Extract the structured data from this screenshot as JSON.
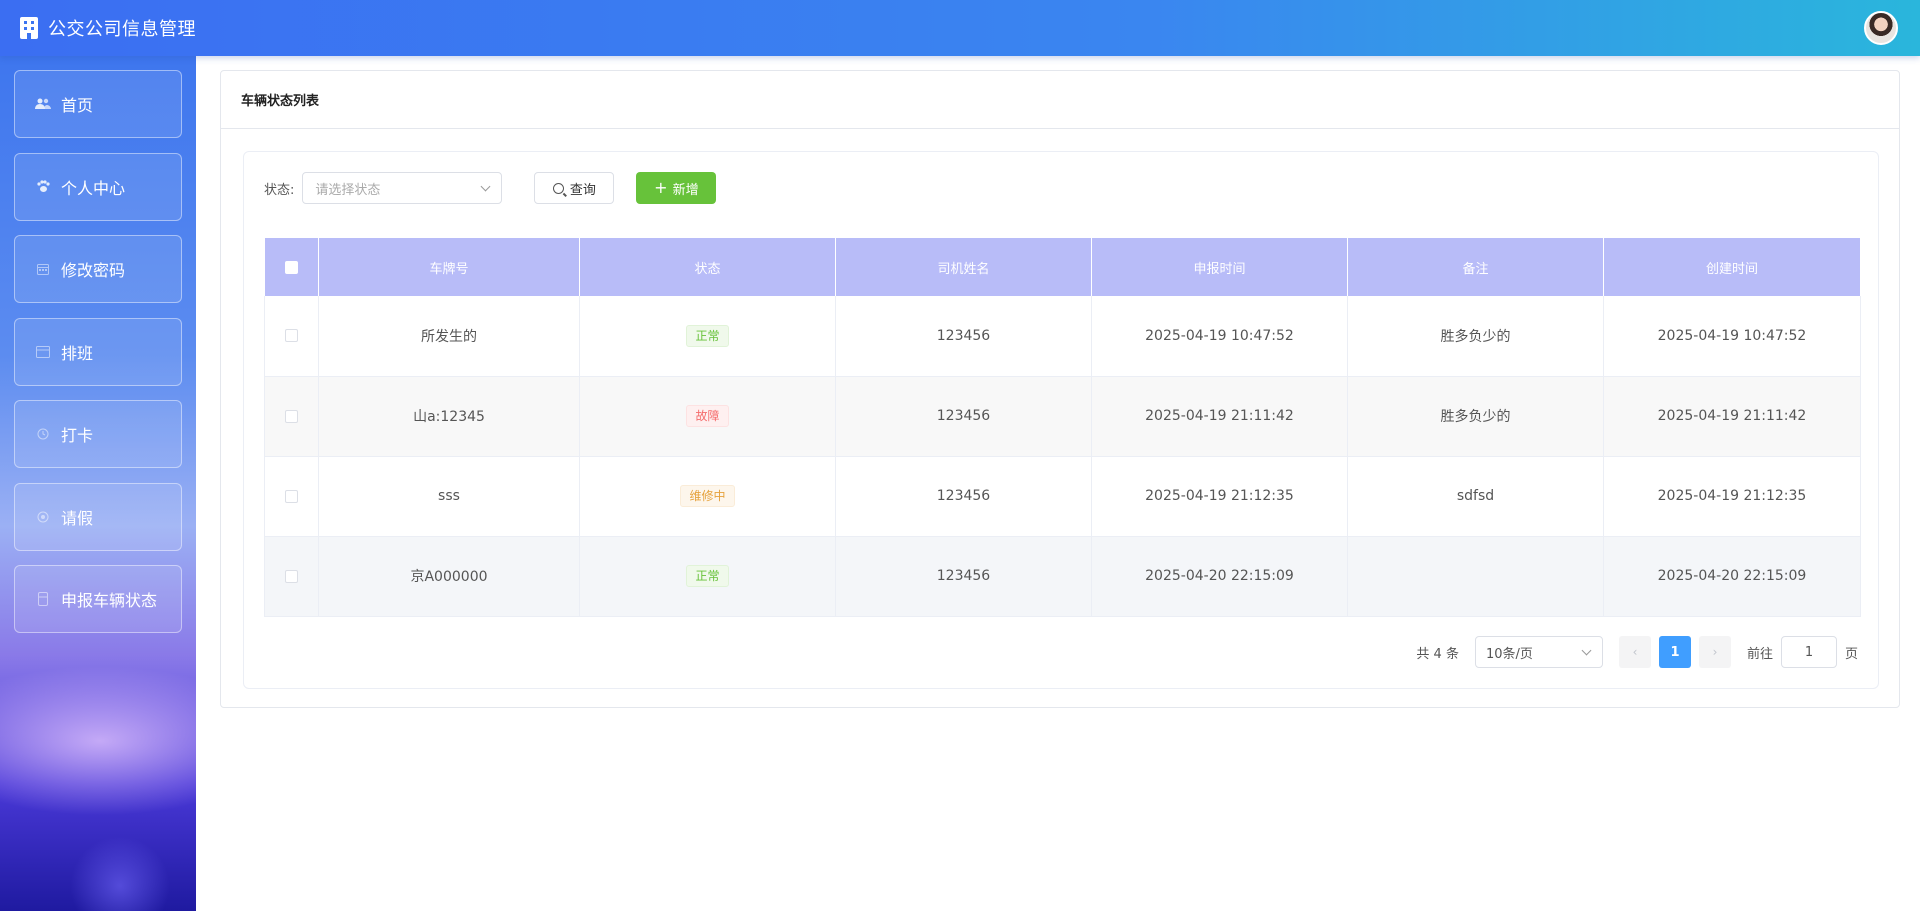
{
  "header": {
    "title": "公交公司信息管理"
  },
  "sidebar": {
    "items": [
      {
        "label": "首页",
        "icon": "users-icon"
      },
      {
        "label": "个人中心",
        "icon": "paw-icon"
      },
      {
        "label": "修改密码",
        "icon": "calendar-icon"
      },
      {
        "label": "排班",
        "icon": "schedule-icon"
      },
      {
        "label": "打卡",
        "icon": "clock-in-icon"
      },
      {
        "label": "请假",
        "icon": "leave-icon"
      },
      {
        "label": "申报车辆状态",
        "icon": "bus-icon"
      }
    ]
  },
  "page": {
    "title": "车辆状态列表"
  },
  "filter": {
    "status_label": "状态:",
    "status_placeholder": "请选择状态",
    "query_label": "查询",
    "add_label": "新增"
  },
  "table": {
    "columns": [
      "车牌号",
      "状态",
      "司机姓名",
      "申报时间",
      "备注",
      "创建时间"
    ],
    "rows": [
      {
        "plate": "所发生的",
        "status": "正常",
        "status_type": "ok",
        "driver": "123456",
        "report_time": "2025-04-19 10:47:52",
        "remark": "胜多负少的",
        "create_time": "2025-04-19 10:47:52"
      },
      {
        "plate": "山a:12345",
        "status": "故障",
        "status_type": "bad",
        "driver": "123456",
        "report_time": "2025-04-19 21:11:42",
        "remark": "胜多负少的",
        "create_time": "2025-04-19 21:11:42"
      },
      {
        "plate": "sss",
        "status": "维修中",
        "status_type": "fix",
        "driver": "123456",
        "report_time": "2025-04-19 21:12:35",
        "remark": "sdfsd",
        "create_time": "2025-04-19 21:12:35"
      },
      {
        "plate": "京A000000",
        "status": "正常",
        "status_type": "ok",
        "driver": "123456",
        "report_time": "2025-04-20 22:15:09",
        "remark": "",
        "create_time": "2025-04-20 22:15:09"
      }
    ]
  },
  "pagination": {
    "total": "共 4 条",
    "page_size": "10条/页",
    "prev": "‹",
    "next": "›",
    "current": "1",
    "goto_label": "前往",
    "goto_value": "1",
    "goto_suffix": "页"
  },
  "colors": {
    "header_start": "#3b6ef2",
    "header_end": "#2ab6dc",
    "table_header": "#b8bcf8",
    "add_button": "#67c23a",
    "active_page": "#409eff"
  }
}
